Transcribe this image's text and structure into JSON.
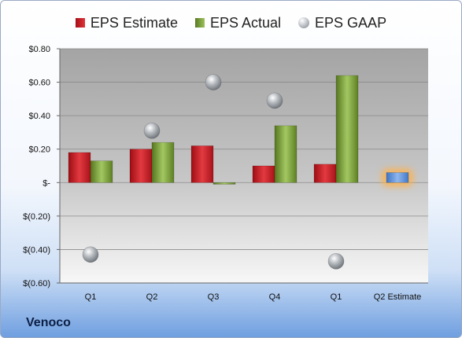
{
  "chart_data": {
    "type": "bar",
    "categories": [
      "Q1",
      "Q2",
      "Q3",
      "Q4",
      "Q1",
      "Q2 Estimate"
    ],
    "series": [
      {
        "name": "EPS Estimate",
        "kind": "bar",
        "color": "#c8262c",
        "values": [
          0.18,
          0.2,
          0.22,
          0.1,
          0.11,
          null
        ]
      },
      {
        "name": "EPS Actual",
        "kind": "bar",
        "color": "#7a9e3a",
        "values": [
          0.13,
          0.24,
          -0.01,
          0.34,
          0.64,
          null
        ]
      },
      {
        "name": "EPS Estimate",
        "kind": "bar",
        "color": "#5b8fd6",
        "highlight": true,
        "values": [
          null,
          null,
          null,
          null,
          null,
          0.06
        ]
      },
      {
        "name": "EPS GAAP",
        "kind": "scatter",
        "color": "#9ea3a8",
        "values": [
          -0.43,
          0.31,
          0.6,
          0.49,
          -0.47,
          null
        ]
      }
    ],
    "yticks": [
      "$(0.60)",
      "$(0.40)",
      "$(0.20)",
      "$-",
      "$0.20",
      "$0.40",
      "$0.60",
      "$0.80"
    ],
    "ylim": [
      -0.6,
      0.8
    ],
    "grid": true,
    "legend": "top",
    "legend_entries": [
      {
        "label": "EPS Estimate",
        "marker": "red-square"
      },
      {
        "label": "EPS Actual",
        "marker": "green-square"
      },
      {
        "label": "EPS GAAP",
        "marker": "gray-circle"
      }
    ]
  },
  "brand": "Venoco"
}
